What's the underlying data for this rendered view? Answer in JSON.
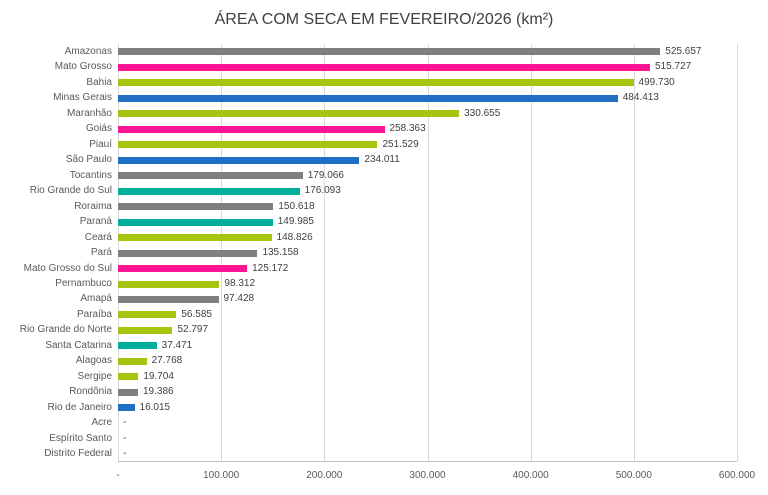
{
  "title": "ÁREA COM SECA EM FEVEREIRO/2026 (km²)",
  "chart_data": {
    "type": "bar",
    "orientation": "horizontal",
    "title": "ÁREA COM SECA EM FEVEREIRO/2026 (km²)",
    "xlabel": "",
    "ylabel": "",
    "xlim": [
      0,
      600000
    ],
    "grid": true,
    "x_ticks": [
      "-",
      "100.000",
      "200.000",
      "300.000",
      "400.000",
      "500.000",
      "600.000"
    ],
    "categories": [
      "Amazonas",
      "Mato Grosso",
      "Bahia",
      "Minas Gerais",
      "Maranhão",
      "Goiás",
      "Piauí",
      "São Paulo",
      "Tocantins",
      "Rio Grande do Sul",
      "Roraima",
      "Paraná",
      "Ceará",
      "Pará",
      "Mato Grosso do Sul",
      "Pernambuco",
      "Amapá",
      "Paraíba",
      "Rio Grande do Norte",
      "Santa Catarina",
      "Alagoas",
      "Sergipe",
      "Rondônia",
      "Rio de Janeiro",
      "Acre",
      "Espírito Santo",
      "Distrito Federal"
    ],
    "values": [
      525657,
      515727,
      499730,
      484413,
      330655,
      258363,
      251529,
      234011,
      179066,
      176093,
      150618,
      149985,
      148826,
      135158,
      125172,
      98312,
      97428,
      56585,
      52797,
      37471,
      27768,
      19704,
      19386,
      16015,
      null,
      null,
      null
    ],
    "value_labels": [
      "525.657",
      "515.727",
      "499.730",
      "484.413",
      "330.655",
      "258.363",
      "251.529",
      "234.011",
      "179.066",
      "176.093",
      "150.618",
      "149.985",
      "148.826",
      "135.158",
      "125.172",
      "98.312",
      "97.428",
      "56.585",
      "52.797",
      "37.471",
      "27.768",
      "19.704",
      "19.386",
      "16.015",
      "-",
      "-",
      "-"
    ],
    "bar_color_keys": [
      "gray",
      "pink",
      "lime",
      "blue",
      "lime",
      "pink",
      "lime",
      "blue",
      "gray",
      "teal",
      "gray",
      "teal",
      "lime",
      "gray",
      "pink",
      "lime",
      "gray",
      "lime",
      "lime",
      "teal",
      "lime",
      "lime",
      "gray",
      "blue",
      null,
      null,
      null
    ],
    "palette": {
      "gray": "#7F7F7F",
      "pink": "#FF1493",
      "lime": "#A6C50F",
      "blue": "#1F6FC5",
      "teal": "#00B09B"
    },
    "grid_color": "#D9D9D9",
    "axis_color": "#BFBFBF",
    "label_color": "#595959",
    "title_color": "#404040"
  }
}
